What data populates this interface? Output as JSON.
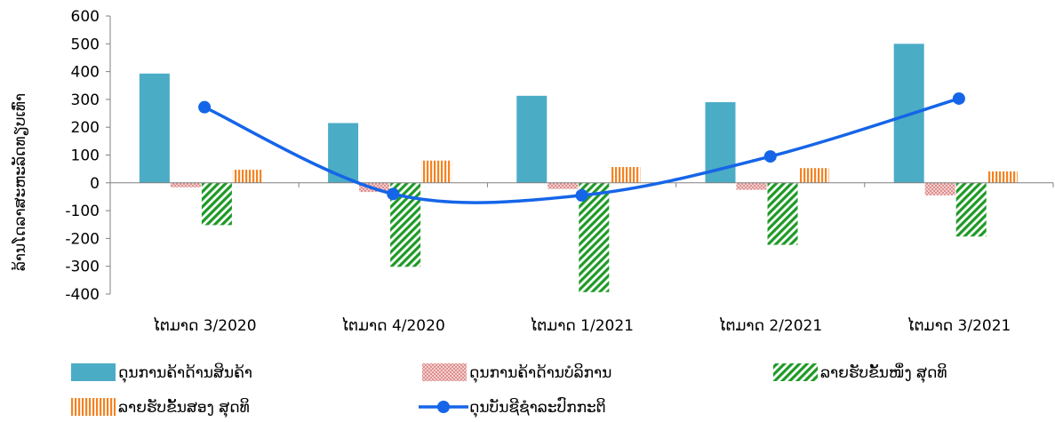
{
  "chart_data": {
    "type": "bar",
    "categories": [
      "ໄຕມາດ 3/2020",
      "ໄຕມາດ 4/2020",
      "ໄຕມາດ 1/2021",
      "ໄຕມາດ 2/2021",
      "ໄຕມາດ 3/2021"
    ],
    "series": [
      {
        "name": "ດຸນການຄ້າດ້ານສິນຄ້າ",
        "type": "bar",
        "pattern": "solid",
        "color": "#4bacc6",
        "values": [
          393,
          215,
          313,
          290,
          500
        ]
      },
      {
        "name": "ດຸນການຄ້າດ້ານບໍລິການ",
        "type": "bar",
        "pattern": "dots",
        "color": "#e6a0a0",
        "values": [
          -16,
          -33,
          -22,
          -25,
          -45
        ]
      },
      {
        "name": "ລາຍຮັບຂັ້ນໜຶ່ງ ສຸດທິ",
        "type": "bar",
        "pattern": "diagonal",
        "color": "#1f9a27",
        "values": [
          -152,
          -302,
          -393,
          -223,
          -193
        ]
      },
      {
        "name": "ລາຍຮັບຂັ້ນສອງ ສຸດທິ",
        "type": "bar",
        "pattern": "vertical",
        "color": "#f58220",
        "values": [
          47,
          80,
          57,
          53,
          41
        ]
      },
      {
        "name": "ດຸນບັນຊີຊໍາລະປົກກະຕິ",
        "type": "line",
        "color": "#1565e8",
        "values": [
          272,
          -40,
          -45,
          95,
          303
        ]
      }
    ],
    "title": "",
    "xlabel": "",
    "ylabel": "ລ້ານໂດລາສະຫະລັດທຽບເທົ່າ",
    "ylim": [
      -400,
      600
    ],
    "yticks": [
      "600",
      "500",
      "400",
      "300",
      "200",
      "100",
      "0",
      "-100",
      "-200",
      "-300",
      "-400"
    ],
    "grid": false,
    "legend_position": "bottom"
  }
}
